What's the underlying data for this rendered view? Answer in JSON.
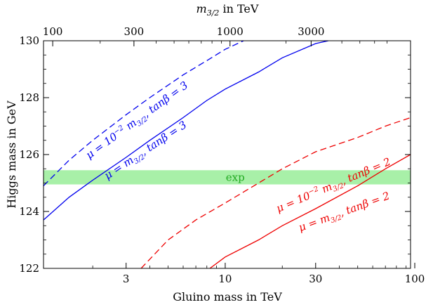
{
  "chart_data": {
    "type": "line",
    "title": "",
    "xlabel": "Gluino mass in TeV",
    "ylabel": "Higgs mass in GeV",
    "top_xlabel_main": "m",
    "top_xlabel_sub": "3/2",
    "top_xlabel_rest": " in TeV",
    "x_scale": "log",
    "xlim": [
      1.1,
      95
    ],
    "ylim": [
      122,
      130
    ],
    "x_ticks": [
      3,
      10,
      30,
      100
    ],
    "x_tick_labels": [
      "3",
      "10",
      "30",
      "100"
    ],
    "y_ticks": [
      122,
      124,
      126,
      128,
      130
    ],
    "y_tick_labels": [
      "122",
      "124",
      "126",
      "128",
      "130"
    ],
    "top_ticks": [
      100,
      300,
      1000,
      3000
    ],
    "top_tick_labels": [
      "100",
      "300",
      "1000",
      "3000"
    ],
    "top_axis_gluino_equivalent": [
      1.23,
      3.3,
      10.6,
      28.4
    ],
    "band": {
      "label": "exp",
      "y_low": 124.95,
      "y_high": 125.45,
      "color": "#a8f0a8",
      "text_color": "#22aa22"
    },
    "series": [
      {
        "name": "mu = m3/2, tanβ = 3",
        "color": "#0000ee",
        "dash": false,
        "label_parts": [
          "μ = ",
          "m",
          "3/2",
          ", tanβ = 3"
        ],
        "points": [
          [
            1.1,
            123.7
          ],
          [
            1.5,
            124.5
          ],
          [
            2,
            125.1
          ],
          [
            3,
            125.9
          ],
          [
            4,
            126.5
          ],
          [
            6,
            127.3
          ],
          [
            8,
            127.9
          ],
          [
            10,
            128.3
          ],
          [
            15,
            128.9
          ],
          [
            20,
            129.4
          ],
          [
            30,
            129.9
          ],
          [
            35,
            130.0
          ]
        ]
      },
      {
        "name": "mu = 1e-2 m3/2, tanβ = 3",
        "color": "#0000ee",
        "dash": true,
        "label_parts": [
          "μ = 10",
          "−2",
          " m",
          "3/2",
          ", tanβ = 3"
        ],
        "points": [
          [
            1.1,
            124.9
          ],
          [
            1.5,
            125.8
          ],
          [
            2,
            126.5
          ],
          [
            3,
            127.4
          ],
          [
            4,
            128.0
          ],
          [
            6,
            128.8
          ],
          [
            8,
            129.3
          ],
          [
            10,
            129.7
          ],
          [
            12.5,
            130.0
          ]
        ]
      },
      {
        "name": "mu = 1e-2 m3/2, tanβ = 2",
        "color": "#ee0000",
        "dash": true,
        "label_parts": [
          "μ = 10",
          "−2",
          " m",
          "3/2",
          ", tanβ = 2"
        ],
        "points": [
          [
            3.6,
            122.0
          ],
          [
            5,
            123.0
          ],
          [
            7,
            123.7
          ],
          [
            10,
            124.3
          ],
          [
            15,
            125.0
          ],
          [
            20,
            125.5
          ],
          [
            30,
            126.1
          ],
          [
            50,
            126.6
          ],
          [
            70,
            127.0
          ],
          [
            95,
            127.3
          ]
        ]
      },
      {
        "name": "mu = m3/2, tanβ = 2",
        "color": "#ee0000",
        "dash": false,
        "label_parts": [
          "μ = ",
          "m",
          "3/2",
          ", tanβ = 2"
        ],
        "points": [
          [
            8.3,
            122.0
          ],
          [
            10,
            122.4
          ],
          [
            15,
            123.0
          ],
          [
            20,
            123.5
          ],
          [
            30,
            124.1
          ],
          [
            50,
            124.9
          ],
          [
            70,
            125.5
          ],
          [
            95,
            126.0
          ]
        ]
      }
    ]
  }
}
